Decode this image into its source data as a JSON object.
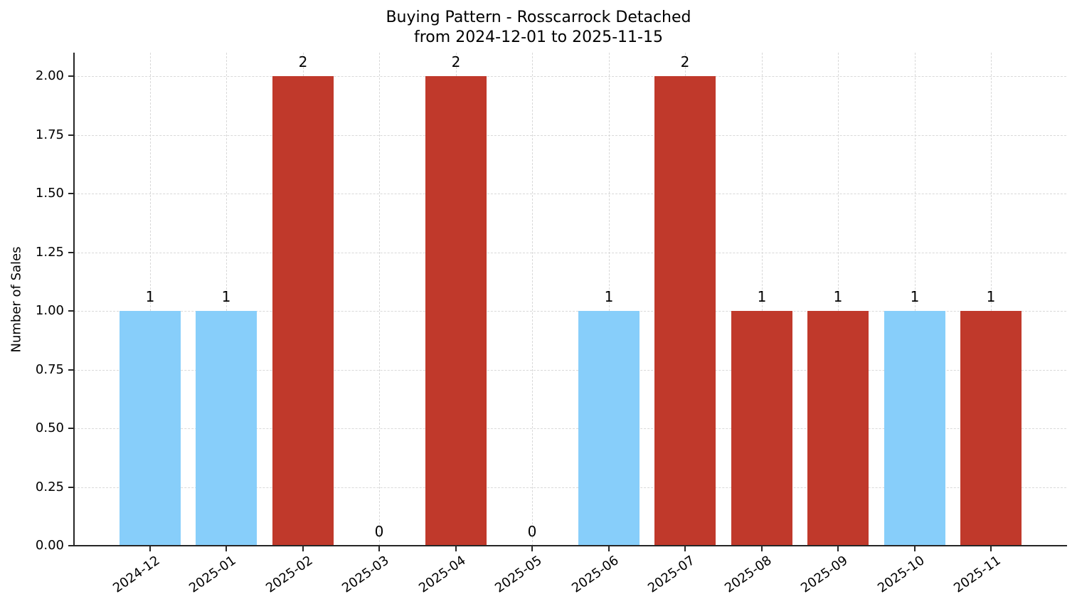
{
  "chart_data": {
    "type": "bar",
    "title": "Buying Pattern - Rosscarrock Detached",
    "subtitle": "from 2024-12-01 to 2025-11-15",
    "xlabel": "",
    "ylabel": "Number of Sales",
    "categories": [
      "2024-12",
      "2025-01",
      "2025-02",
      "2025-03",
      "2025-04",
      "2025-05",
      "2025-06",
      "2025-07",
      "2025-08",
      "2025-09",
      "2025-10",
      "2025-11"
    ],
    "values": [
      1,
      1,
      2,
      0,
      2,
      0,
      1,
      2,
      1,
      1,
      1,
      1
    ],
    "bar_colors": [
      "#87cefa",
      "#87cefa",
      "#c0392b",
      "#c0392b",
      "#c0392b",
      "#c0392b",
      "#87cefa",
      "#c0392b",
      "#c0392b",
      "#c0392b",
      "#87cefa",
      "#c0392b"
    ],
    "data_labels": [
      "1",
      "1",
      "2",
      "0",
      "2",
      "0",
      "1",
      "2",
      "1",
      "1",
      "1",
      "1"
    ],
    "yticks": [
      "0.00",
      "0.25",
      "0.50",
      "0.75",
      "1.00",
      "1.25",
      "1.50",
      "1.75",
      "2.00"
    ],
    "ylim": [
      0,
      2.1
    ],
    "grid": true,
    "legend": null
  },
  "colors": {
    "light_blue": "#87cefa",
    "red": "#c0392b",
    "axis": "#262626",
    "grid": "#d9d9d9"
  }
}
